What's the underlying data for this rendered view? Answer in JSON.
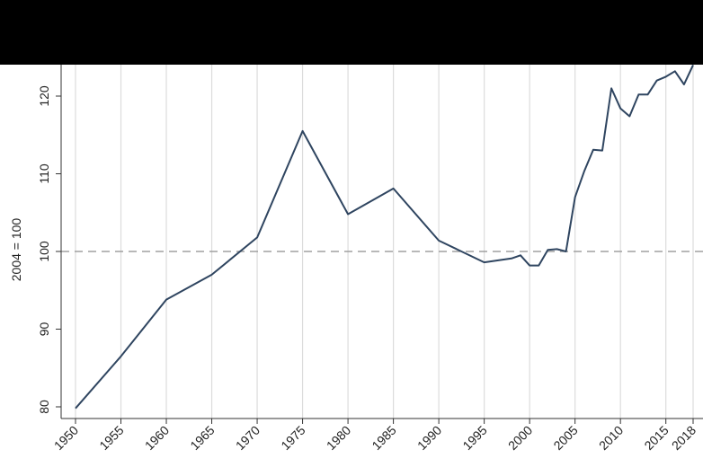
{
  "chart_data": {
    "type": "line",
    "title": "",
    "xlabel": "",
    "ylabel": "2004 = 100",
    "xlim": [
      1950,
      2018
    ],
    "ylim": [
      79,
      124
    ],
    "x_ticks": [
      "1950",
      "1955",
      "1960",
      "1965",
      "1970",
      "1975",
      "1980",
      "1985",
      "1990",
      "1995",
      "2000",
      "2005",
      "2010",
      "2015",
      "2018"
    ],
    "y_ticks": [
      "80",
      "90",
      "100",
      "110",
      "120"
    ],
    "grid": "vertical",
    "reference_line": {
      "y": 100,
      "style": "dashed"
    },
    "colors": {
      "line": "#2f4560",
      "grid": "#dcdcdc",
      "reference": "#a0a0a0",
      "axis": "#333333"
    },
    "series": [
      {
        "x": [
          1950,
          1955,
          1960,
          1965,
          1970,
          1975,
          1980,
          1985,
          1990,
          1995,
          1998,
          1999,
          2000,
          2001,
          2002,
          2003,
          2004,
          2005,
          2006,
          2007,
          2008,
          2009,
          2010,
          2011,
          2012,
          2013,
          2014,
          2015,
          2016,
          2017,
          2018
        ],
        "y": [
          79.8,
          86.5,
          93.8,
          97.0,
          101.8,
          115.5,
          104.8,
          108.1,
          101.4,
          98.6,
          99.1,
          99.5,
          98.2,
          98.2,
          100.2,
          100.3,
          100.0,
          107.0,
          110.3,
          113.1,
          113.0,
          121.0,
          118.4,
          117.4,
          120.2,
          120.2,
          122.0,
          122.5,
          123.2,
          121.5,
          124.0
        ]
      }
    ]
  }
}
